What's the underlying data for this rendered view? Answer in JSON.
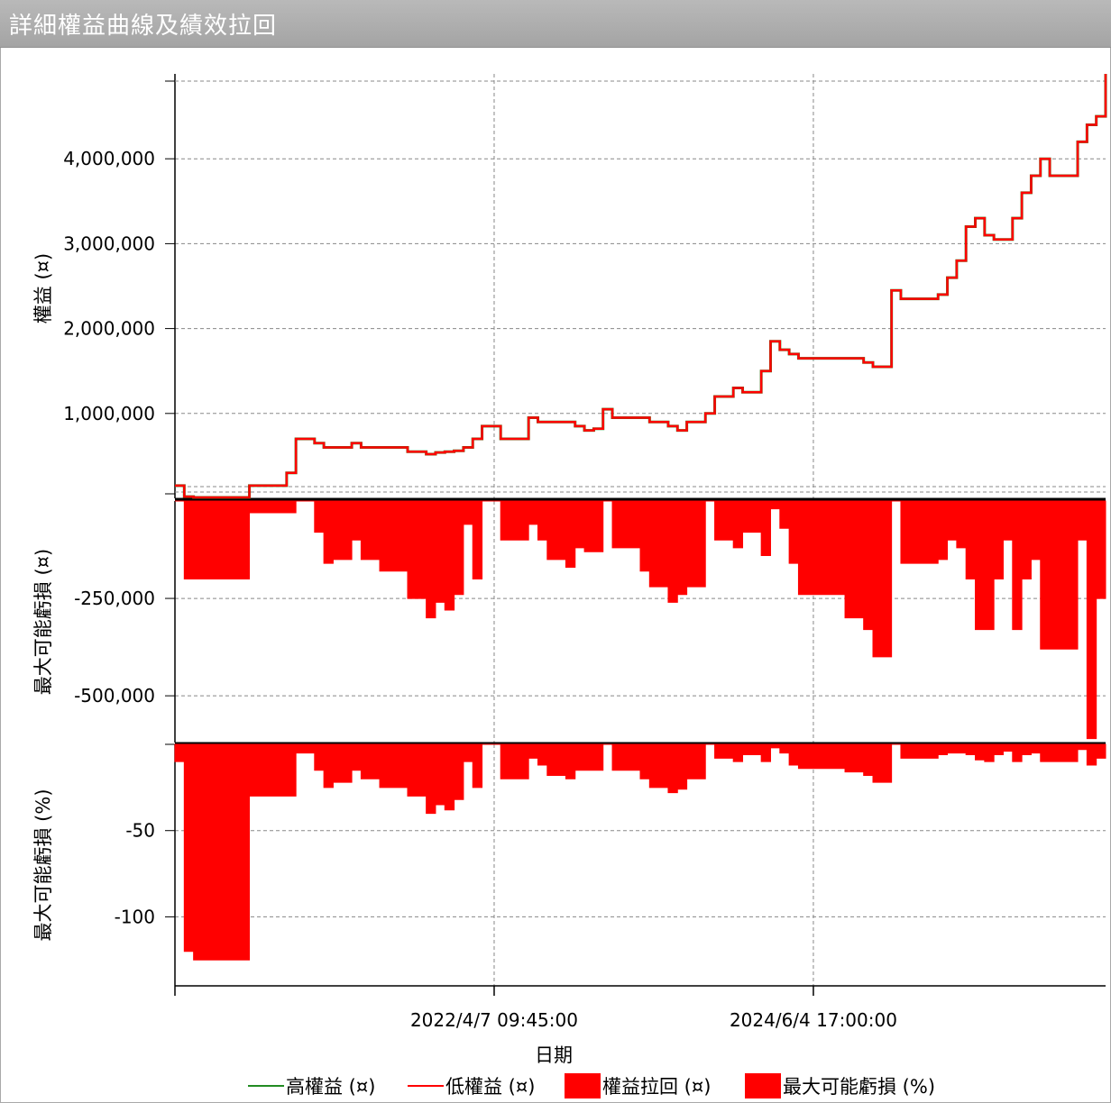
{
  "window": {
    "title": "詳細權益曲線及績效拉回"
  },
  "chart_data": [
    {
      "type": "line",
      "ylabel": "權益 (¤)",
      "ylim": [
        0,
        5000000
      ],
      "yticks": [
        1000000,
        2000000,
        3000000,
        4000000
      ],
      "ytick_labels": [
        "1,000,000",
        "2,000,000",
        "3,000,000",
        "4,000,000"
      ],
      "x": [
        0,
        0.01,
        0.02,
        0.04,
        0.05,
        0.07,
        0.08,
        0.1,
        0.11,
        0.12,
        0.13,
        0.15,
        0.16,
        0.17,
        0.19,
        0.2,
        0.22,
        0.23,
        0.25,
        0.27,
        0.28,
        0.29,
        0.3,
        0.31,
        0.32,
        0.33,
        0.35,
        0.36,
        0.37,
        0.38,
        0.39,
        0.4,
        0.42,
        0.43,
        0.44,
        0.45,
        0.46,
        0.47,
        0.49,
        0.5,
        0.51,
        0.53,
        0.54,
        0.55,
        0.57,
        0.58,
        0.6,
        0.61,
        0.63,
        0.64,
        0.65,
        0.66,
        0.67,
        0.68,
        0.7,
        0.71,
        0.72,
        0.74,
        0.75,
        0.77,
        0.78,
        0.8,
        0.81,
        0.82,
        0.83,
        0.84,
        0.85,
        0.86,
        0.87,
        0.88,
        0.89,
        0.9,
        0.91,
        0.92,
        0.93,
        0.94,
        0.95,
        0.96,
        0.97,
        0.98,
        0.99,
        1.0
      ],
      "series": [
        {
          "name": "高權益 (¤)",
          "values": [
            150000,
            20000,
            10000,
            10000,
            10000,
            10000,
            150000,
            150000,
            150000,
            300000,
            700000,
            650000,
            600000,
            600000,
            650000,
            600000,
            600000,
            600000,
            550000,
            520000,
            540000,
            550000,
            560000,
            600000,
            700000,
            850000,
            700000,
            700000,
            700000,
            950000,
            900000,
            900000,
            900000,
            850000,
            800000,
            820000,
            1050000,
            950000,
            950000,
            950000,
            900000,
            850000,
            800000,
            900000,
            1000000,
            1200000,
            1300000,
            1250000,
            1500000,
            1850000,
            1750000,
            1700000,
            1650000,
            1650000,
            1650000,
            1650000,
            1650000,
            1600000,
            1550000,
            2450000,
            2350000,
            2350000,
            2350000,
            2400000,
            2600000,
            2800000,
            3200000,
            3300000,
            3100000,
            3050000,
            3050000,
            3300000,
            3600000,
            3800000,
            4000000,
            3800000,
            3800000,
            3800000,
            4200000,
            4400000,
            4500000,
            5000000
          ]
        },
        {
          "name": "低權益 (¤)",
          "values": [
            150000,
            20000,
            10000,
            10000,
            10000,
            10000,
            150000,
            150000,
            150000,
            300000,
            700000,
            650000,
            600000,
            600000,
            650000,
            600000,
            600000,
            600000,
            550000,
            520000,
            540000,
            550000,
            560000,
            600000,
            700000,
            850000,
            700000,
            700000,
            700000,
            950000,
            900000,
            900000,
            900000,
            850000,
            800000,
            820000,
            1050000,
            950000,
            950000,
            950000,
            900000,
            850000,
            800000,
            900000,
            1000000,
            1200000,
            1300000,
            1250000,
            1500000,
            1850000,
            1750000,
            1700000,
            1650000,
            1650000,
            1650000,
            1650000,
            1650000,
            1600000,
            1550000,
            2450000,
            2350000,
            2350000,
            2350000,
            2400000,
            2600000,
            2800000,
            3200000,
            3300000,
            3100000,
            3050000,
            3050000,
            3300000,
            3600000,
            3800000,
            4000000,
            3800000,
            3800000,
            3800000,
            4200000,
            4400000,
            4500000,
            5000000
          ]
        }
      ]
    },
    {
      "type": "area",
      "ylabel": "最大可能虧損 (¤)",
      "ylim": [
        -620000,
        0
      ],
      "yticks": [
        -250000,
        -500000
      ],
      "ytick_labels": [
        "-250,000",
        "-500,000"
      ],
      "series": [
        {
          "name": "權益拉回 (¤)",
          "values": [
            0,
            -200000,
            -200000,
            -200000,
            -200000,
            -200000,
            -30000,
            -30000,
            -30000,
            -30000,
            0,
            -80000,
            -160000,
            -150000,
            -100000,
            -150000,
            -180000,
            -180000,
            -250000,
            -300000,
            -260000,
            -280000,
            -240000,
            -60000,
            -200000,
            0,
            -100000,
            -100000,
            -100000,
            -60000,
            -100000,
            -150000,
            -170000,
            -120000,
            -130000,
            -130000,
            0,
            -120000,
            -120000,
            -180000,
            -220000,
            -260000,
            -240000,
            -220000,
            0,
            -100000,
            -120000,
            -80000,
            -140000,
            -20000,
            -70000,
            -160000,
            -240000,
            -240000,
            -240000,
            -240000,
            -300000,
            -330000,
            -400000,
            0,
            -160000,
            -160000,
            -160000,
            -150000,
            -100000,
            -120000,
            -200000,
            -330000,
            -330000,
            -200000,
            -100000,
            -330000,
            -200000,
            -150000,
            -380000,
            -380000,
            -380000,
            -380000,
            -100000,
            -610000,
            -250000,
            -50000
          ]
        }
      ]
    },
    {
      "type": "area",
      "ylabel": "最大可能虧損 (%)",
      "ylim": [
        -140,
        0
      ],
      "yticks": [
        -50,
        -100
      ],
      "ytick_labels": [
        "-50",
        "-100"
      ],
      "series": [
        {
          "name": "最大可能虧損 (%)",
          "values": [
            -10,
            -120,
            -125,
            -125,
            -125,
            -125,
            -30,
            -30,
            -30,
            -30,
            -5,
            -15,
            -25,
            -22,
            -15,
            -20,
            -25,
            -25,
            -30,
            -40,
            -35,
            -38,
            -32,
            -10,
            -25,
            0,
            -20,
            -20,
            -20,
            -8,
            -12,
            -18,
            -20,
            -15,
            -15,
            -15,
            0,
            -15,
            -15,
            -20,
            -25,
            -28,
            -26,
            -20,
            0,
            -8,
            -10,
            -6,
            -10,
            -2,
            -5,
            -12,
            -14,
            -14,
            -14,
            -14,
            -16,
            -18,
            -22,
            0,
            -8,
            -8,
            -8,
            -6,
            -5,
            -5,
            -6,
            -9,
            -10,
            -6,
            -4,
            -10,
            -6,
            -5,
            -10,
            -10,
            -10,
            -10,
            -3,
            -12,
            -8,
            -2
          ]
        }
      ]
    }
  ],
  "xaxis": {
    "label": "日期",
    "tick_labels": [
      "2022/4/7 09:45:00",
      "2024/6/4 17:00:00"
    ]
  },
  "legend": {
    "items": [
      {
        "label": "高權益 (¤)",
        "color": "#228b22",
        "kind": "line"
      },
      {
        "label": "低權益 (¤)",
        "color": "#ff0000",
        "kind": "line"
      },
      {
        "label": "權益拉回 (¤)",
        "color": "#ff0000",
        "kind": "box"
      },
      {
        "label": "最大可能虧損 (%)",
        "color": "#ff0000",
        "kind": "box"
      }
    ]
  },
  "colors": {
    "equity_high": "#228b22",
    "equity_low": "#ff0000",
    "drawdown": "#ff0000"
  }
}
